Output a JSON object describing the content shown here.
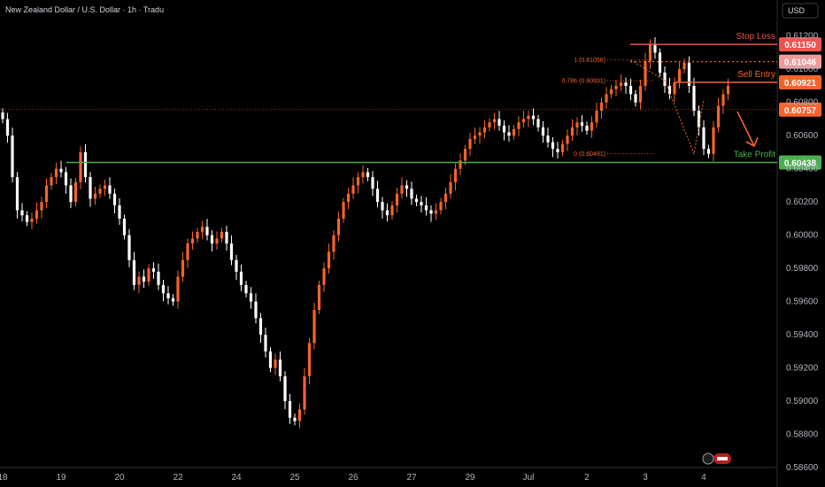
{
  "chart_data": {
    "type": "candlestick",
    "title": "New Zealand Dollar / U.S. Dollar · 1h · Tradu",
    "currency": "USD",
    "ylim": [
      0.586,
      0.613
    ],
    "y_ticks": [
      "0.61200",
      "0.61000",
      "0.60800",
      "0.60600",
      "0.60400",
      "0.60200",
      "0.60000",
      "0.59800",
      "0.59600",
      "0.59400",
      "0.59200",
      "0.59000",
      "0.58800",
      "0.58600"
    ],
    "x_ticks": [
      {
        "label": "18",
        "index": 0
      },
      {
        "label": "19",
        "index": 12
      },
      {
        "label": "20",
        "index": 24
      },
      {
        "label": "22",
        "index": 36
      },
      {
        "label": "24",
        "index": 48
      },
      {
        "label": "25",
        "index": 60
      },
      {
        "label": "26",
        "index": 72
      },
      {
        "label": "27",
        "index": 84
      },
      {
        "label": "29",
        "index": 96
      },
      {
        "label": "Jul",
        "index": 108
      },
      {
        "label": "2",
        "index": 120
      },
      {
        "label": "3",
        "index": 132
      },
      {
        "label": "4",
        "index": 144
      }
    ],
    "candle_count": 150,
    "closes": [
      0.607,
      0.606,
      0.6035,
      0.6015,
      0.6012,
      0.6008,
      0.601,
      0.6015,
      0.602,
      0.603,
      0.6035,
      0.604,
      0.6038,
      0.603,
      0.602,
      0.6032,
      0.605,
      0.6035,
      0.6022,
      0.6025,
      0.6028,
      0.603,
      0.6025,
      0.6018,
      0.601,
      0.6,
      0.5985,
      0.597,
      0.5975,
      0.5972,
      0.598,
      0.5978,
      0.597,
      0.5965,
      0.5962,
      0.596,
      0.5975,
      0.5985,
      0.5995,
      0.5998,
      0.6002,
      0.6005,
      0.6,
      0.5995,
      0.5998,
      0.6002,
      0.5995,
      0.5985,
      0.5978,
      0.597,
      0.5965,
      0.596,
      0.595,
      0.594,
      0.593,
      0.592,
      0.5925,
      0.5915,
      0.59,
      0.589,
      0.5888,
      0.5895,
      0.5915,
      0.5935,
      0.5955,
      0.597,
      0.598,
      0.599,
      0.6,
      0.601,
      0.602,
      0.6025,
      0.603,
      0.6035,
      0.6038,
      0.6035,
      0.6028,
      0.602,
      0.6015,
      0.6012,
      0.6018,
      0.6025,
      0.603,
      0.6028,
      0.6022,
      0.602,
      0.6018,
      0.6015,
      0.6013,
      0.6015,
      0.602,
      0.6025,
      0.6032,
      0.604,
      0.6045,
      0.6052,
      0.6058,
      0.606,
      0.6062,
      0.6065,
      0.6068,
      0.607,
      0.6066,
      0.6062,
      0.606,
      0.6064,
      0.6068,
      0.607,
      0.6072,
      0.607,
      0.6065,
      0.606,
      0.6056,
      0.6052,
      0.605,
      0.6055,
      0.606,
      0.6065,
      0.6068,
      0.6066,
      0.6063,
      0.6068,
      0.6075,
      0.608,
      0.6085,
      0.6088,
      0.609,
      0.6092,
      0.609,
      0.6085,
      0.608,
      0.609,
      0.6105,
      0.6115,
      0.611,
      0.6098,
      0.609,
      0.6085,
      0.6092,
      0.61,
      0.6104,
      0.609,
      0.6075,
      0.6065,
      0.6052,
      0.6049,
      0.6065,
      0.6078,
      0.6085,
      0.609
    ],
    "horizontal_levels": [
      {
        "name": "Stop Loss",
        "value": "0.61150",
        "color": "#ef5350"
      },
      {
        "name": "",
        "value": "0.61046",
        "color": "#ef9a9a"
      },
      {
        "name": "Sell Entry",
        "value": "0.60921",
        "color": "#f7632a"
      },
      {
        "name": "",
        "value": "0.60757",
        "color": "#f7632a"
      },
      {
        "name": "Take Profit",
        "value": "0.60438",
        "color": "#4caf50"
      }
    ],
    "fib_labels": [
      {
        "text": "1 (0.61056)",
        "value": 0.61056
      },
      {
        "text": "0.786 (0.60931)",
        "value": 0.60931
      },
      {
        "text": "0 (0.60491)",
        "value": 0.60491
      }
    ],
    "colors": {
      "up": "#f7632a",
      "down": "#ffffff",
      "axis_text": "#b2b5be",
      "background": "#000000"
    }
  }
}
